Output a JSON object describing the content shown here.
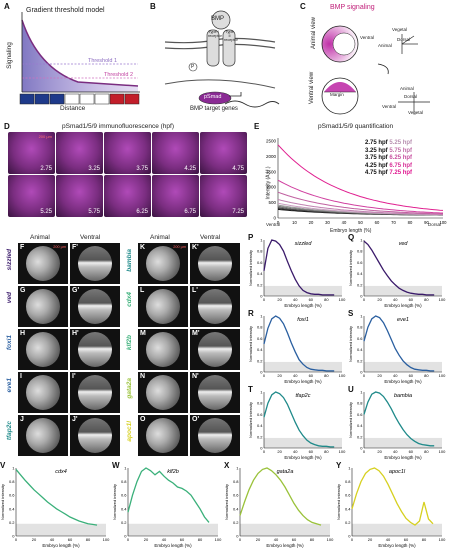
{
  "panels": {
    "A": {
      "label": "A",
      "title": "Gradient threshold model",
      "ylabel": "Signaling",
      "xlabel": "Distance",
      "threshold1": "Threshold 1",
      "threshold2": "Threshold 2"
    },
    "B": {
      "label": "B",
      "bmp": "BMP",
      "type1": "Type I receptor",
      "type2": "Type II receptor",
      "p": "P",
      "psmad": "pSmad",
      "target": "BMP target genes"
    },
    "C": {
      "label": "C",
      "title": "BMP signaling",
      "animal_view": "Animal view",
      "ventral_view": "Ventral view",
      "ventral": "Ventral",
      "animal": "Animal",
      "dorsal": "Dorsal",
      "vegetal": "Vegetal",
      "margin": "Margin"
    },
    "D": {
      "label": "D",
      "title": "pSmad1/5/9 immunofluorescence (hpf)",
      "scale": "200 µm",
      "times": [
        "2.75",
        "3.25",
        "3.75",
        "4.25",
        "4.75",
        "5.25",
        "5.75",
        "6.25",
        "6.75",
        "7.25"
      ]
    },
    "E": {
      "label": "E",
      "title": "pSmad1/5/9 quantification",
      "ylabel": "Intensity (A.U.)",
      "xlabel": "Embryo length (%)",
      "left": "Ventral",
      "right": "Dorsal",
      "legend": [
        [
          "2.75 hpf",
          "5.25 hpf"
        ],
        [
          "3.25 hpf",
          "5.75 hpf"
        ],
        [
          "3.75 hpf",
          "6.25 hpf"
        ],
        [
          "4.25 hpf",
          "6.75 hpf"
        ],
        [
          "4.75 hpf",
          "7.25 hpf"
        ]
      ]
    },
    "F_O": {
      "animal": "Animal",
      "ventral": "Ventral",
      "scale": "200 µm",
      "left_rows": [
        {
          "l": "F",
          "l2": "F'",
          "gene": "sizzled"
        },
        {
          "l": "G",
          "l2": "G'",
          "gene": "ved"
        },
        {
          "l": "H",
          "l2": "H'",
          "gene": "foxi1"
        },
        {
          "l": "I",
          "l2": "I'",
          "gene": "eve1"
        },
        {
          "l": "J",
          "l2": "J'",
          "gene": "tfap2c"
        }
      ],
      "right_rows": [
        {
          "l": "K",
          "l2": "K'",
          "gene": "bambia"
        },
        {
          "l": "L",
          "l2": "L'",
          "gene": "cdx4"
        },
        {
          "l": "M",
          "l2": "M'",
          "gene": "klf2b"
        },
        {
          "l": "N",
          "l2": "N'",
          "gene": "gata2a"
        },
        {
          "l": "O",
          "l2": "O'",
          "gene": "apoc1l"
        }
      ]
    },
    "plots": {
      "ylabel": "Normalized intensity",
      "xlabel": "Embryo length (%)"
    }
  },
  "colors": {
    "magenta": "#d0289a",
    "purple": "#3a1a6a",
    "blue": "#2a5fa0",
    "teal": "#1f8a8a",
    "green": "#3ab07a",
    "lime": "#9ac23a",
    "yellow": "#d6d020"
  },
  "chart_data": [
    {
      "id": "P",
      "type": "line",
      "title": "sizzled",
      "xlim": [
        0,
        100
      ],
      "ylim": [
        0,
        1
      ],
      "x": [
        0,
        5,
        10,
        15,
        20,
        25,
        30,
        35,
        40,
        45,
        50,
        55,
        60,
        65,
        70,
        75,
        80,
        85,
        90
      ],
      "y": [
        0.45,
        0.85,
        1.0,
        0.98,
        0.92,
        0.8,
        0.62,
        0.45,
        0.3,
        0.18,
        0.1,
        0.06,
        0.04,
        0.03,
        0.03,
        0.02,
        0.02,
        0.02,
        0.02
      ]
    },
    {
      "id": "Q",
      "type": "line",
      "title": "ved",
      "xlim": [
        0,
        100
      ],
      "ylim": [
        0,
        1
      ],
      "x": [
        0,
        5,
        10,
        15,
        20,
        25,
        30,
        35,
        40,
        45,
        50,
        55,
        60,
        65,
        70,
        75,
        80,
        85,
        90
      ],
      "y": [
        0.98,
        0.92,
        0.82,
        0.7,
        0.58,
        0.46,
        0.36,
        0.27,
        0.2,
        0.14,
        0.1,
        0.07,
        0.05,
        0.04,
        0.03,
        0.03,
        0.02,
        0.02,
        0.02
      ]
    },
    {
      "id": "R",
      "type": "line",
      "title": "foxi1",
      "xlim": [
        0,
        100
      ],
      "ylim": [
        0,
        1
      ],
      "x": [
        0,
        5,
        10,
        15,
        20,
        25,
        30,
        35,
        40,
        45,
        50,
        55,
        60,
        65,
        70,
        75,
        80,
        85,
        90
      ],
      "y": [
        0.5,
        0.78,
        0.95,
        1.0,
        0.96,
        0.86,
        0.7,
        0.52,
        0.36,
        0.22,
        0.14,
        0.08,
        0.05,
        0.04,
        0.03,
        0.03,
        0.02,
        0.02,
        0.02
      ]
    },
    {
      "id": "S",
      "type": "line",
      "title": "eve1",
      "xlim": [
        0,
        100
      ],
      "ylim": [
        0,
        1
      ],
      "x": [
        0,
        5,
        10,
        15,
        20,
        25,
        30,
        35,
        40,
        45,
        50,
        55,
        60,
        65,
        70,
        75,
        80,
        85,
        90
      ],
      "y": [
        0.55,
        0.8,
        0.95,
        1.0,
        0.97,
        0.88,
        0.74,
        0.58,
        0.42,
        0.3,
        0.2,
        0.13,
        0.08,
        0.05,
        0.04,
        0.03,
        0.03,
        0.02,
        0.02
      ]
    },
    {
      "id": "T",
      "type": "line",
      "title": "tfap2c",
      "xlim": [
        0,
        100
      ],
      "ylim": [
        0,
        1
      ],
      "x": [
        0,
        5,
        10,
        15,
        20,
        25,
        30,
        35,
        40,
        45,
        50,
        55,
        60,
        65,
        70,
        75,
        80,
        85,
        90
      ],
      "y": [
        0.55,
        0.8,
        0.95,
        1.0,
        0.97,
        0.9,
        0.78,
        0.62,
        0.46,
        0.32,
        0.22,
        0.14,
        0.09,
        0.06,
        0.04,
        0.03,
        0.03,
        0.02,
        0.02
      ]
    },
    {
      "id": "U",
      "type": "line",
      "title": "bambia",
      "xlim": [
        0,
        100
      ],
      "ylim": [
        0,
        1
      ],
      "x": [
        0,
        5,
        10,
        15,
        20,
        25,
        30,
        35,
        40,
        45,
        50,
        55,
        60,
        65,
        70,
        75,
        80,
        85,
        90
      ],
      "y": [
        0.6,
        0.82,
        0.96,
        1.0,
        0.98,
        0.92,
        0.82,
        0.7,
        0.56,
        0.44,
        0.33,
        0.24,
        0.17,
        0.12,
        0.08,
        0.06,
        0.05,
        0.04,
        0.04
      ]
    },
    {
      "id": "V",
      "type": "line",
      "title": "cdx4",
      "xlim": [
        0,
        100
      ],
      "ylim": [
        0,
        1
      ],
      "x": [
        0,
        5,
        10,
        15,
        20,
        25,
        30,
        35,
        40,
        45,
        50,
        55,
        60,
        65,
        70,
        75,
        80,
        85,
        90
      ],
      "y": [
        0.98,
        0.9,
        0.82,
        0.75,
        0.68,
        0.62,
        0.56,
        0.5,
        0.45,
        0.4,
        0.36,
        0.32,
        0.28,
        0.25,
        0.22,
        0.2,
        0.18,
        0.17,
        0.16
      ]
    },
    {
      "id": "W",
      "type": "line",
      "title": "klf2b",
      "xlim": [
        0,
        100
      ],
      "ylim": [
        0,
        1
      ],
      "x": [
        0,
        5,
        10,
        15,
        20,
        25,
        30,
        35,
        40,
        45,
        50,
        55,
        60,
        65,
        70,
        75,
        80,
        85,
        90
      ],
      "y": [
        0.35,
        0.6,
        0.8,
        0.95,
        1.0,
        0.96,
        0.9,
        0.95,
        0.88,
        0.82,
        0.78,
        0.72,
        0.7,
        0.66,
        0.6,
        0.5,
        0.4,
        0.28,
        0.2
      ]
    },
    {
      "id": "X",
      "type": "line",
      "title": "gata2a",
      "xlim": [
        0,
        100
      ],
      "ylim": [
        0,
        1
      ],
      "x": [
        0,
        5,
        10,
        15,
        20,
        25,
        30,
        35,
        40,
        45,
        50,
        55,
        60,
        65,
        70,
        75,
        80,
        85,
        90
      ],
      "y": [
        0.3,
        0.5,
        0.68,
        0.82,
        0.92,
        0.98,
        1.0,
        0.96,
        0.9,
        0.82,
        0.72,
        0.6,
        0.48,
        0.38,
        0.3,
        0.24,
        0.2,
        0.18,
        0.16
      ]
    },
    {
      "id": "Y",
      "type": "line",
      "title": "apoc1l",
      "xlim": [
        0,
        100
      ],
      "ylim": [
        0,
        1
      ],
      "x": [
        0,
        5,
        10,
        15,
        20,
        25,
        30,
        35,
        40,
        45,
        50,
        55,
        60,
        65,
        70,
        75,
        80,
        85,
        90
      ],
      "y": [
        0.4,
        0.62,
        0.8,
        0.92,
        0.98,
        1.0,
        0.96,
        0.88,
        0.76,
        0.62,
        0.48,
        0.36,
        0.26,
        0.2,
        0.16,
        0.22,
        0.5,
        0.25,
        0.18
      ]
    }
  ]
}
